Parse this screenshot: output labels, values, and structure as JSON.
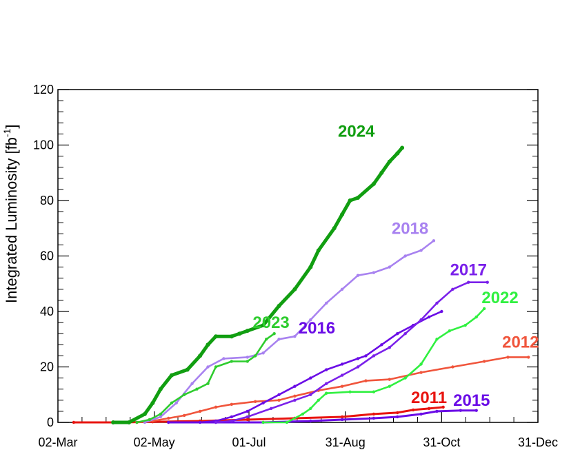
{
  "chart_data": {
    "type": "line",
    "xlabel": "",
    "ylabel_main": "Integrated Luminosity [fb",
    "ylabel_sup": "-1",
    "ylabel_close": "]",
    "x_is_date": true,
    "xlim": [
      "02-Mar",
      "31-Dec"
    ],
    "ylim": [
      0,
      120
    ],
    "x_ticks": [
      {
        "label": "02-Mar",
        "day": 0
      },
      {
        "label": "02-May",
        "day": 61
      },
      {
        "label": "01-Jul",
        "day": 121
      },
      {
        "label": "31-Aug",
        "day": 182
      },
      {
        "label": "31-Oct",
        "day": 243
      },
      {
        "label": "31-Dec",
        "day": 304
      }
    ],
    "y_ticks": [
      0,
      20,
      40,
      60,
      80,
      100,
      120
    ],
    "grid": false,
    "series": [
      {
        "name": "2011",
        "color": "#e8140f",
        "label": "2011",
        "label_day": 235,
        "label_y": 7,
        "points": [
          [
            10,
            0
          ],
          [
            40,
            0
          ],
          [
            60,
            0.2
          ],
          [
            90,
            0.5
          ],
          [
            120,
            1
          ],
          [
            150,
            1.5
          ],
          [
            180,
            2
          ],
          [
            200,
            3
          ],
          [
            215,
            3.5
          ],
          [
            225,
            4.5
          ],
          [
            235,
            5
          ],
          [
            244,
            5.5
          ]
        ]
      },
      {
        "name": "2012",
        "color": "#f0553c",
        "label": "2012",
        "label_day": 293,
        "label_y": 27,
        "points": [
          [
            50,
            0
          ],
          [
            60,
            0.5
          ],
          [
            70,
            1.5
          ],
          [
            80,
            2.5
          ],
          [
            90,
            4
          ],
          [
            100,
            5.5
          ],
          [
            110,
            6.5
          ],
          [
            125,
            7.5
          ],
          [
            140,
            8
          ],
          [
            150,
            9.5
          ],
          [
            165,
            11.5
          ],
          [
            180,
            13
          ],
          [
            195,
            15
          ],
          [
            210,
            15.5
          ],
          [
            230,
            18
          ],
          [
            250,
            20
          ],
          [
            270,
            22
          ],
          [
            285,
            23.5
          ],
          [
            298,
            23.5
          ]
        ]
      },
      {
        "name": "2015",
        "color": "#6a0ce6",
        "label": "2015",
        "label_day": 262,
        "label_y": 6,
        "points": [
          [
            70,
            0
          ],
          [
            100,
            0
          ],
          [
            130,
            0
          ],
          [
            160,
            0.5
          ],
          [
            180,
            1
          ],
          [
            200,
            1.5
          ],
          [
            215,
            2
          ],
          [
            230,
            3
          ],
          [
            240,
            4
          ],
          [
            255,
            4.3
          ],
          [
            265,
            4.3
          ]
        ]
      },
      {
        "name": "2016",
        "color": "#6a0ce6",
        "label": "2016",
        "label_day": 164,
        "label_y": 32,
        "points": [
          [
            90,
            0
          ],
          [
            100,
            0.5
          ],
          [
            110,
            2
          ],
          [
            120,
            4
          ],
          [
            130,
            7
          ],
          [
            140,
            10
          ],
          [
            150,
            13
          ],
          [
            160,
            16
          ],
          [
            170,
            19
          ],
          [
            180,
            21
          ],
          [
            190,
            23
          ],
          [
            195,
            24
          ],
          [
            205,
            28
          ],
          [
            215,
            32
          ],
          [
            225,
            35
          ],
          [
            235,
            38
          ],
          [
            243,
            40
          ]
        ]
      },
      {
        "name": "2017",
        "color": "#7a20ea",
        "label": "2017",
        "label_day": 260,
        "label_y": 53,
        "points": [
          [
            100,
            0
          ],
          [
            110,
            0.5
          ],
          [
            120,
            2
          ],
          [
            135,
            5
          ],
          [
            150,
            8
          ],
          [
            160,
            10
          ],
          [
            170,
            14
          ],
          [
            180,
            17
          ],
          [
            190,
            20
          ],
          [
            200,
            24
          ],
          [
            210,
            27
          ],
          [
            220,
            32
          ],
          [
            230,
            37
          ],
          [
            240,
            43
          ],
          [
            250,
            48
          ],
          [
            260,
            50.5
          ],
          [
            272,
            50.5
          ]
        ]
      },
      {
        "name": "2018",
        "color": "#a882f0",
        "label": "2018",
        "label_day": 223,
        "label_y": 68,
        "points": [
          [
            55,
            0
          ],
          [
            65,
            2
          ],
          [
            75,
            7
          ],
          [
            85,
            14
          ],
          [
            95,
            20
          ],
          [
            105,
            23
          ],
          [
            120,
            23.5
          ],
          [
            130,
            25
          ],
          [
            140,
            30
          ],
          [
            150,
            31
          ],
          [
            160,
            37
          ],
          [
            170,
            43
          ],
          [
            180,
            48
          ],
          [
            190,
            53
          ],
          [
            200,
            54
          ],
          [
            210,
            56
          ],
          [
            220,
            60
          ],
          [
            230,
            62
          ],
          [
            238,
            65.5
          ]
        ]
      },
      {
        "name": "2022",
        "color": "#30f040",
        "label": "2022",
        "label_day": 280,
        "label_y": 43,
        "points": [
          [
            130,
            0
          ],
          [
            145,
            0
          ],
          [
            155,
            3
          ],
          [
            160,
            5
          ],
          [
            165,
            8
          ],
          [
            170,
            10.5
          ],
          [
            185,
            11
          ],
          [
            200,
            11
          ],
          [
            210,
            13
          ],
          [
            220,
            16
          ],
          [
            230,
            21
          ],
          [
            240,
            30
          ],
          [
            248,
            33
          ],
          [
            258,
            35
          ],
          [
            265,
            38
          ],
          [
            270,
            41
          ]
        ]
      },
      {
        "name": "2023",
        "color": "#2ecc2e",
        "label": "2023",
        "label_day": 135,
        "label_y": 34,
        "points": [
          [
            50,
            0
          ],
          [
            58,
            1
          ],
          [
            65,
            3
          ],
          [
            72,
            7
          ],
          [
            80,
            10
          ],
          [
            88,
            12
          ],
          [
            95,
            14
          ],
          [
            100,
            20
          ],
          [
            110,
            22
          ],
          [
            120,
            22
          ],
          [
            125,
            24
          ],
          [
            132,
            30
          ],
          [
            137,
            32
          ]
        ]
      },
      {
        "name": "2024",
        "color": "#119e11",
        "label": "2024",
        "label_day": 189,
        "label_y": 103,
        "points": [
          [
            35,
            0
          ],
          [
            45,
            0
          ],
          [
            55,
            3
          ],
          [
            60,
            7
          ],
          [
            65,
            12
          ],
          [
            72,
            17
          ],
          [
            82,
            19
          ],
          [
            90,
            24
          ],
          [
            95,
            28
          ],
          [
            100,
            31
          ],
          [
            110,
            31
          ],
          [
            115,
            32
          ],
          [
            120,
            33
          ],
          [
            130,
            35
          ],
          [
            140,
            42
          ],
          [
            150,
            48
          ],
          [
            160,
            56
          ],
          [
            165,
            62
          ],
          [
            175,
            70
          ],
          [
            180,
            75
          ],
          [
            185,
            80
          ],
          [
            190,
            81
          ],
          [
            200,
            86
          ],
          [
            205,
            90
          ],
          [
            210,
            94
          ],
          [
            215,
            97
          ],
          [
            218,
            99
          ]
        ]
      }
    ]
  }
}
